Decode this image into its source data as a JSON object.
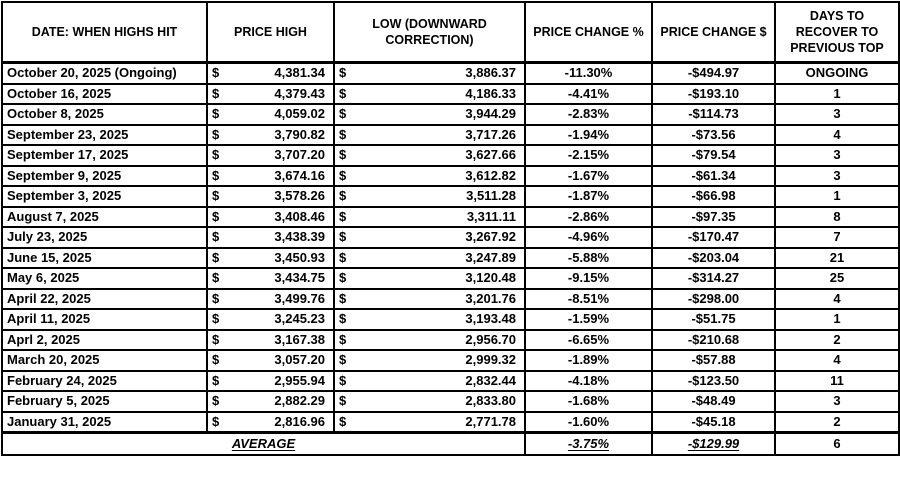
{
  "chart_data": {
    "type": "table",
    "currency_symbol": "$",
    "columns": [
      "DATE: WHEN HIGHS HIT",
      "PRICE HIGH",
      "LOW (DOWNWARD CORRECTION)",
      "PRICE CHANGE %",
      "PRICE CHANGE $",
      "DAYS TO RECOVER TO PREVIOUS TOP"
    ],
    "rows": [
      {
        "date": "October 20, 2025 (Ongoing)",
        "high": "4,381.34",
        "low": "3,886.37",
        "pct": "-11.30%",
        "usd": "-$494.97",
        "days": "ONGOING"
      },
      {
        "date": "October 16, 2025",
        "high": "4,379.43",
        "low": "4,186.33",
        "pct": "-4.41%",
        "usd": "-$193.10",
        "days": "1"
      },
      {
        "date": "October 8, 2025",
        "high": "4,059.02",
        "low": "3,944.29",
        "pct": "-2.83%",
        "usd": "-$114.73",
        "days": "3"
      },
      {
        "date": "September 23, 2025",
        "high": "3,790.82",
        "low": "3,717.26",
        "pct": "-1.94%",
        "usd": "-$73.56",
        "days": "4"
      },
      {
        "date": "September 17, 2025",
        "high": "3,707.20",
        "low": "3,627.66",
        "pct": "-2.15%",
        "usd": "-$79.54",
        "days": "3"
      },
      {
        "date": "September 9, 2025",
        "high": "3,674.16",
        "low": "3,612.82",
        "pct": "-1.67%",
        "usd": "-$61.34",
        "days": "3"
      },
      {
        "date": "September 3, 2025",
        "high": "3,578.26",
        "low": "3,511.28",
        "pct": "-1.87%",
        "usd": "-$66.98",
        "days": "1"
      },
      {
        "date": "August 7, 2025",
        "high": "3,408.46",
        "low": "3,311.11",
        "pct": "-2.86%",
        "usd": "-$97.35",
        "days": "8"
      },
      {
        "date": "July 23, 2025",
        "high": "3,438.39",
        "low": "3,267.92",
        "pct": "-4.96%",
        "usd": "-$170.47",
        "days": "7"
      },
      {
        "date": "June 15, 2025",
        "high": "3,450.93",
        "low": "3,247.89",
        "pct": "-5.88%",
        "usd": "-$203.04",
        "days": "21"
      },
      {
        "date": "May 6, 2025",
        "high": "3,434.75",
        "low": "3,120.48",
        "pct": "-9.15%",
        "usd": "-$314.27",
        "days": "25"
      },
      {
        "date": "April 22, 2025",
        "high": "3,499.76",
        "low": "3,201.76",
        "pct": "-8.51%",
        "usd": "-$298.00",
        "days": "4"
      },
      {
        "date": "April 11, 2025",
        "high": "3,245.23",
        "low": "3,193.48",
        "pct": "-1.59%",
        "usd": "-$51.75",
        "days": "1"
      },
      {
        "date": "Aprl 2, 2025",
        "high": "3,167.38",
        "low": "2,956.70",
        "pct": "-6.65%",
        "usd": "-$210.68",
        "days": "2"
      },
      {
        "date": "March 20, 2025",
        "high": "3,057.20",
        "low": "2,999.32",
        "pct": "-1.89%",
        "usd": "-$57.88",
        "days": "4"
      },
      {
        "date": "February 24, 2025",
        "high": "2,955.94",
        "low": "2,832.44",
        "pct": "-4.18%",
        "usd": "-$123.50",
        "days": "11"
      },
      {
        "date": "February 5, 2025",
        "high": "2,882.29",
        "low": "2,833.80",
        "pct": "-1.68%",
        "usd": "-$48.49",
        "days": "3"
      },
      {
        "date": "January 31, 2025",
        "high": "2,816.96",
        "low": "2,771.78",
        "pct": "-1.60%",
        "usd": "-$45.18",
        "days": "2"
      }
    ],
    "average_row": {
      "label": "AVERAGE",
      "pct": "-3.75%",
      "usd": "-$129.99",
      "days": "6"
    },
    "colors": {
      "border": "#000000",
      "text": "#000000",
      "background": "#ffffff"
    }
  }
}
